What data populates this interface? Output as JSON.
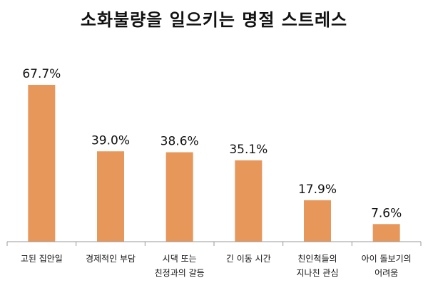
{
  "chart_data": {
    "type": "bar",
    "title": "소화불량을 일으키는 명절 스트레스",
    "categories": [
      [
        "고된 집안일"
      ],
      [
        "경제적인 부담"
      ],
      [
        "시댁 또는",
        "친정과의 갈등"
      ],
      [
        "긴 이동 시간"
      ],
      [
        "친인척들의",
        "지나친 관심"
      ],
      [
        "아이 돌보기의",
        "어려움"
      ]
    ],
    "values": [
      67.7,
      39.0,
      38.6,
      35.1,
      17.9,
      7.6
    ],
    "value_labels": [
      "67.7%",
      "39.0%",
      "38.6%",
      "35.1%",
      "17.9%",
      "7.6%"
    ],
    "ylim": [
      0,
      70
    ],
    "grid": false,
    "bar_color": "#e8975a"
  }
}
